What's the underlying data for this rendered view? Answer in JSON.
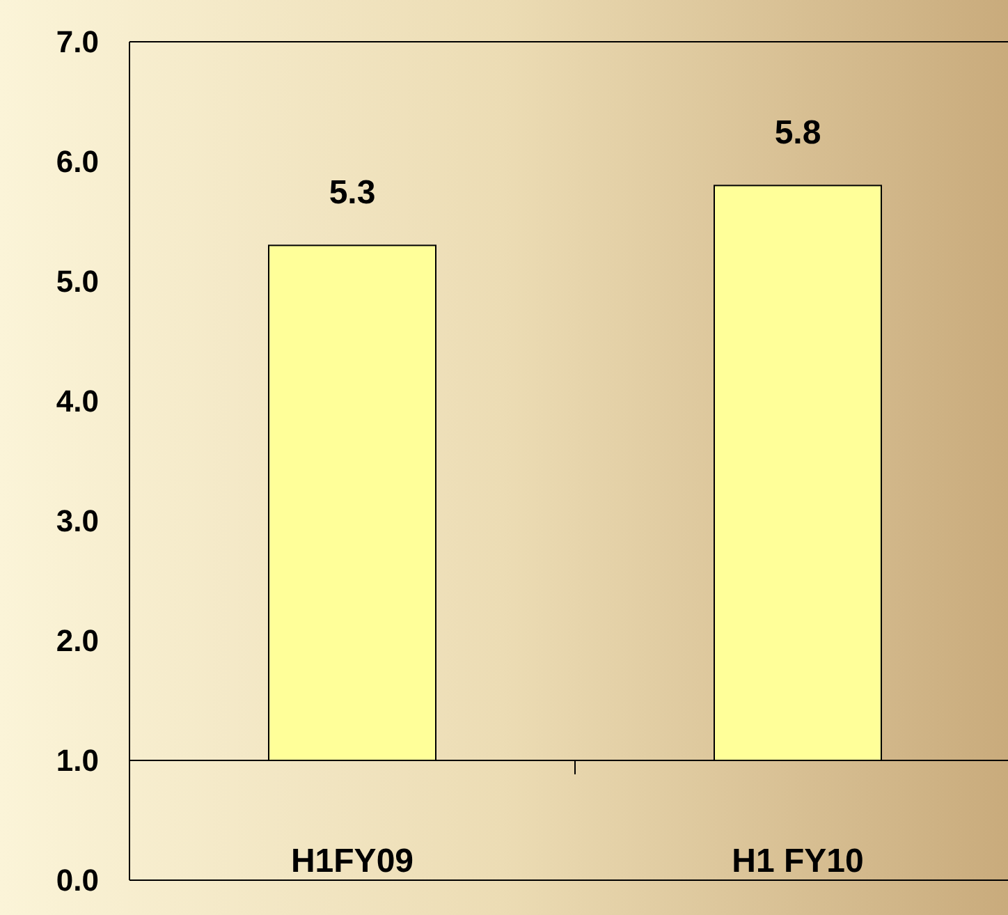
{
  "chart_data": {
    "type": "bar",
    "categories": [
      "H1FY09",
      "H1 FY10"
    ],
    "values": [
      4.3,
      4.8
    ],
    "base": [
      1,
      1
    ],
    "value_labels": [
      "5.3",
      "5.8"
    ],
    "color": "#ffff99",
    "ylim": [
      0,
      7
    ],
    "yticks": [
      {
        "value": 0,
        "label": "0.0"
      },
      {
        "value": 1,
        "label": "1.0"
      },
      {
        "value": 2,
        "label": "2.0"
      },
      {
        "value": 3,
        "label": "3.0"
      },
      {
        "value": 4,
        "label": "4.0"
      },
      {
        "value": 5,
        "label": "5.0"
      },
      {
        "value": 6,
        "label": "6.0"
      },
      {
        "value": 7,
        "label": "7.0"
      }
    ]
  }
}
